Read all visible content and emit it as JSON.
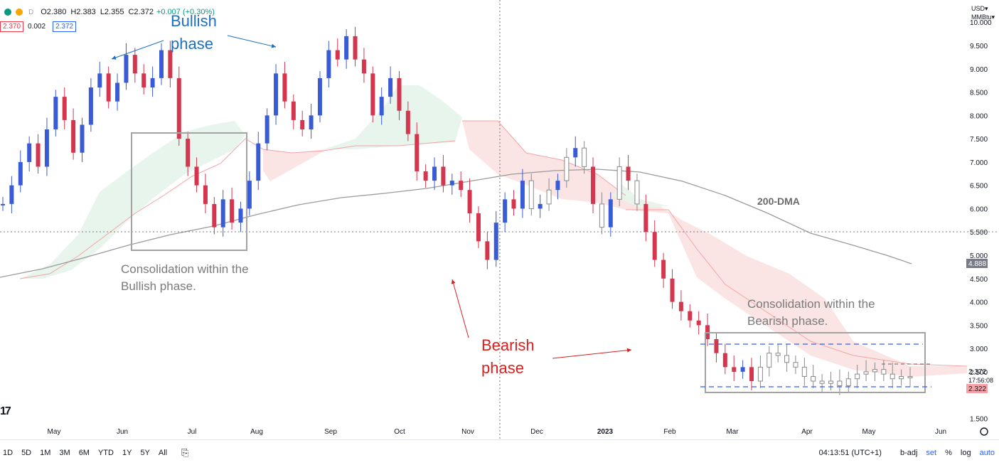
{
  "legend": {
    "open": "O2.380",
    "high": "H2.383",
    "low": "L2.355",
    "close": "C2.372",
    "change": "+0.007 (+0.30%)",
    "interval_tag": "D",
    "bid": "2.370",
    "spread": "0.002",
    "ask": "2.372"
  },
  "currency": {
    "line1": "USD▾",
    "line2": "MMBtu▾"
  },
  "chart_data": {
    "type": "candlestick",
    "x_labels": [
      "May",
      "Jun",
      "Jul",
      "Aug",
      "Sep",
      "Oct",
      "Nov",
      "Dec",
      "2023",
      "Feb",
      "Mar",
      "Apr",
      "May",
      "Jun"
    ],
    "y_ticks": [
      "10.000",
      "9.500",
      "9.000",
      "8.500",
      "8.000",
      "7.500",
      "7.000",
      "6.500",
      "6.000",
      "5.500",
      "5.000",
      "4.500",
      "4.000",
      "3.500",
      "3.000",
      "2.500",
      "1.500"
    ],
    "ylim": [
      1.4,
      10.4
    ],
    "price_badges": {
      "ma_last": "4.888",
      "last_price": "2.372",
      "countdown": "17:56:08",
      "low_marker": "2.322"
    },
    "candles": [
      {
        "i": 0,
        "c": 6.1
      },
      {
        "i": 1,
        "c": 6.5
      },
      {
        "i": 2,
        "c": 7.0
      },
      {
        "i": 3,
        "c": 7.4
      },
      {
        "i": 4,
        "c": 6.9
      },
      {
        "i": 5,
        "c": 7.7
      },
      {
        "i": 6,
        "c": 8.4
      },
      {
        "i": 7,
        "c": 7.9
      },
      {
        "i": 8,
        "c": 7.2
      },
      {
        "i": 9,
        "c": 7.8
      },
      {
        "i": 10,
        "c": 8.6
      },
      {
        "i": 11,
        "c": 8.9
      },
      {
        "i": 12,
        "c": 8.3
      },
      {
        "i": 13,
        "c": 8.7
      },
      {
        "i": 14,
        "c": 9.3
      },
      {
        "i": 15,
        "c": 8.9
      },
      {
        "i": 16,
        "c": 8.6
      },
      {
        "i": 17,
        "c": 8.8
      },
      {
        "i": 18,
        "c": 9.4
      },
      {
        "i": 19,
        "c": 8.8
      },
      {
        "i": 20,
        "c": 7.5
      },
      {
        "i": 21,
        "c": 6.9
      },
      {
        "i": 22,
        "c": 6.5
      },
      {
        "i": 23,
        "c": 6.1
      },
      {
        "i": 24,
        "c": 5.6
      },
      {
        "i": 25,
        "c": 6.2
      },
      {
        "i": 26,
        "c": 5.7
      },
      {
        "i": 27,
        "c": 6.0
      },
      {
        "i": 28,
        "c": 6.6
      },
      {
        "i": 29,
        "c": 7.4
      },
      {
        "i": 30,
        "c": 8.0
      },
      {
        "i": 31,
        "c": 8.9
      },
      {
        "i": 32,
        "c": 8.3
      },
      {
        "i": 33,
        "c": 7.9
      },
      {
        "i": 34,
        "c": 7.7
      },
      {
        "i": 35,
        "c": 8.0
      },
      {
        "i": 36,
        "c": 8.8
      },
      {
        "i": 37,
        "c": 9.4
      },
      {
        "i": 38,
        "c": 9.2
      },
      {
        "i": 39,
        "c": 9.7
      },
      {
        "i": 40,
        "c": 9.2
      },
      {
        "i": 41,
        "c": 8.9
      },
      {
        "i": 42,
        "c": 8.0
      },
      {
        "i": 43,
        "c": 8.4
      },
      {
        "i": 44,
        "c": 8.8
      },
      {
        "i": 45,
        "c": 8.1
      },
      {
        "i": 46,
        "c": 7.6
      },
      {
        "i": 47,
        "c": 6.8
      },
      {
        "i": 48,
        "c": 6.6
      },
      {
        "i": 49,
        "c": 6.9
      },
      {
        "i": 50,
        "c": 6.5
      },
      {
        "i": 51,
        "c": 6.6
      },
      {
        "i": 52,
        "c": 6.4
      },
      {
        "i": 53,
        "c": 5.9
      },
      {
        "i": 54,
        "c": 5.3
      },
      {
        "i": 55,
        "c": 4.9
      },
      {
        "i": 56,
        "c": 5.7
      },
      {
        "i": 57,
        "c": 6.2
      },
      {
        "i": 58,
        "c": 6.0
      },
      {
        "i": 59,
        "c": 6.6
      },
      {
        "i": 60,
        "c": 6.0
      },
      {
        "i": 61,
        "c": 6.1
      },
      {
        "i": 62,
        "c": 6.4
      },
      {
        "i": 63,
        "c": 6.6
      },
      {
        "i": 64,
        "c": 7.1
      },
      {
        "i": 65,
        "c": 7.3
      },
      {
        "i": 66,
        "c": 6.9
      },
      {
        "i": 67,
        "c": 6.1
      },
      {
        "i": 68,
        "c": 5.6
      },
      {
        "i": 69,
        "c": 6.2
      },
      {
        "i": 70,
        "c": 6.9
      },
      {
        "i": 71,
        "c": 6.6
      },
      {
        "i": 72,
        "c": 6.1
      },
      {
        "i": 73,
        "c": 5.5
      },
      {
        "i": 74,
        "c": 4.9
      },
      {
        "i": 75,
        "c": 4.5
      },
      {
        "i": 76,
        "c": 4.0
      },
      {
        "i": 77,
        "c": 3.8
      },
      {
        "i": 78,
        "c": 3.6
      },
      {
        "i": 79,
        "c": 3.5
      },
      {
        "i": 80,
        "c": 3.2
      },
      {
        "i": 81,
        "c": 2.9
      },
      {
        "i": 82,
        "c": 2.6
      },
      {
        "i": 83,
        "c": 2.5
      },
      {
        "i": 84,
        "c": 2.6
      },
      {
        "i": 85,
        "c": 2.3
      },
      {
        "i": 86,
        "c": 2.6
      },
      {
        "i": 87,
        "c": 2.9
      },
      {
        "i": 88,
        "c": 2.85
      },
      {
        "i": 89,
        "c": 2.7
      },
      {
        "i": 90,
        "c": 2.6
      },
      {
        "i": 91,
        "c": 2.4
      },
      {
        "i": 92,
        "c": 2.3
      },
      {
        "i": 93,
        "c": 2.25
      },
      {
        "i": 94,
        "c": 2.3
      },
      {
        "i": 95,
        "c": 2.2
      },
      {
        "i": 96,
        "c": 2.35
      },
      {
        "i": 97,
        "c": 2.45
      },
      {
        "i": 98,
        "c": 2.5
      },
      {
        "i": 99,
        "c": 2.55
      },
      {
        "i": 100,
        "c": 2.45
      },
      {
        "i": 101,
        "c": 2.35
      },
      {
        "i": 102,
        "c": 2.4
      },
      {
        "i": 103,
        "c": 2.37
      }
    ],
    "ma_label": "200-DMA"
  },
  "annotations": {
    "bullish": [
      "Bullish",
      "phase"
    ],
    "bearish": [
      "Bearish",
      "phase"
    ],
    "consol_bull": [
      "Consolidation within the",
      "Bullish phase."
    ],
    "consol_bear": [
      "Consolidation within the",
      "Bearish phase."
    ]
  },
  "bottombar": {
    "ranges": [
      "1D",
      "5D",
      "1M",
      "3M",
      "6M",
      "YTD",
      "1Y",
      "5Y",
      "All"
    ],
    "time": "04:13:51 (UTC+1)",
    "badj": "b-adj",
    "set": "set",
    "percent": "%",
    "log": "log",
    "auto": "auto"
  },
  "colors": {
    "up": "#3a5bd6",
    "down": "#d3364d",
    "doji": "#8a8a8a",
    "cloud_bull": "#e6f4ea",
    "cloud_bear": "#fbe1e1",
    "ma": "#9b9b9b"
  }
}
